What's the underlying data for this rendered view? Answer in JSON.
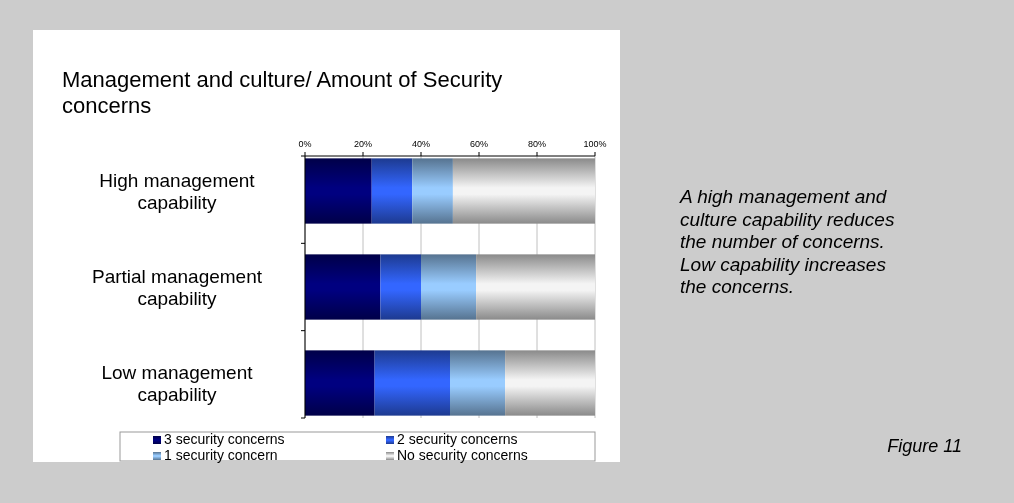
{
  "chart_data": {
    "type": "bar",
    "orientation": "horizontal",
    "stacked": true,
    "title": "Management and culture/ Amount of Security concerns",
    "categories": [
      "High management capability",
      "Partial management capability",
      "Low management capability"
    ],
    "series": [
      {
        "name": "3 security concerns",
        "color": "#000080",
        "values": [
          23,
          26,
          24
        ]
      },
      {
        "name": "2 security concerns",
        "color": "#3366ff",
        "values": [
          14,
          14,
          26
        ]
      },
      {
        "name": "1 security concern",
        "color": "#99ccff",
        "values": [
          14,
          19,
          19
        ]
      },
      {
        "name": "No security concerns",
        "color": "#f4f4f4",
        "values": [
          49,
          41,
          31
        ]
      }
    ],
    "xlim": [
      0,
      100
    ],
    "xticks": [
      {
        "value": 0,
        "label": "0%"
      },
      {
        "value": 20,
        "label": "20%"
      },
      {
        "value": 40,
        "label": "40%"
      },
      {
        "value": 60,
        "label": "60%"
      },
      {
        "value": 80,
        "label": "80%"
      },
      {
        "value": 100,
        "label": "100%"
      }
    ],
    "grid": "x",
    "legend": "bottom",
    "annotations": [
      "A high management and culture capability reduces the number of concerns. Low capability increases the concerns.",
      "Figure 11"
    ]
  }
}
